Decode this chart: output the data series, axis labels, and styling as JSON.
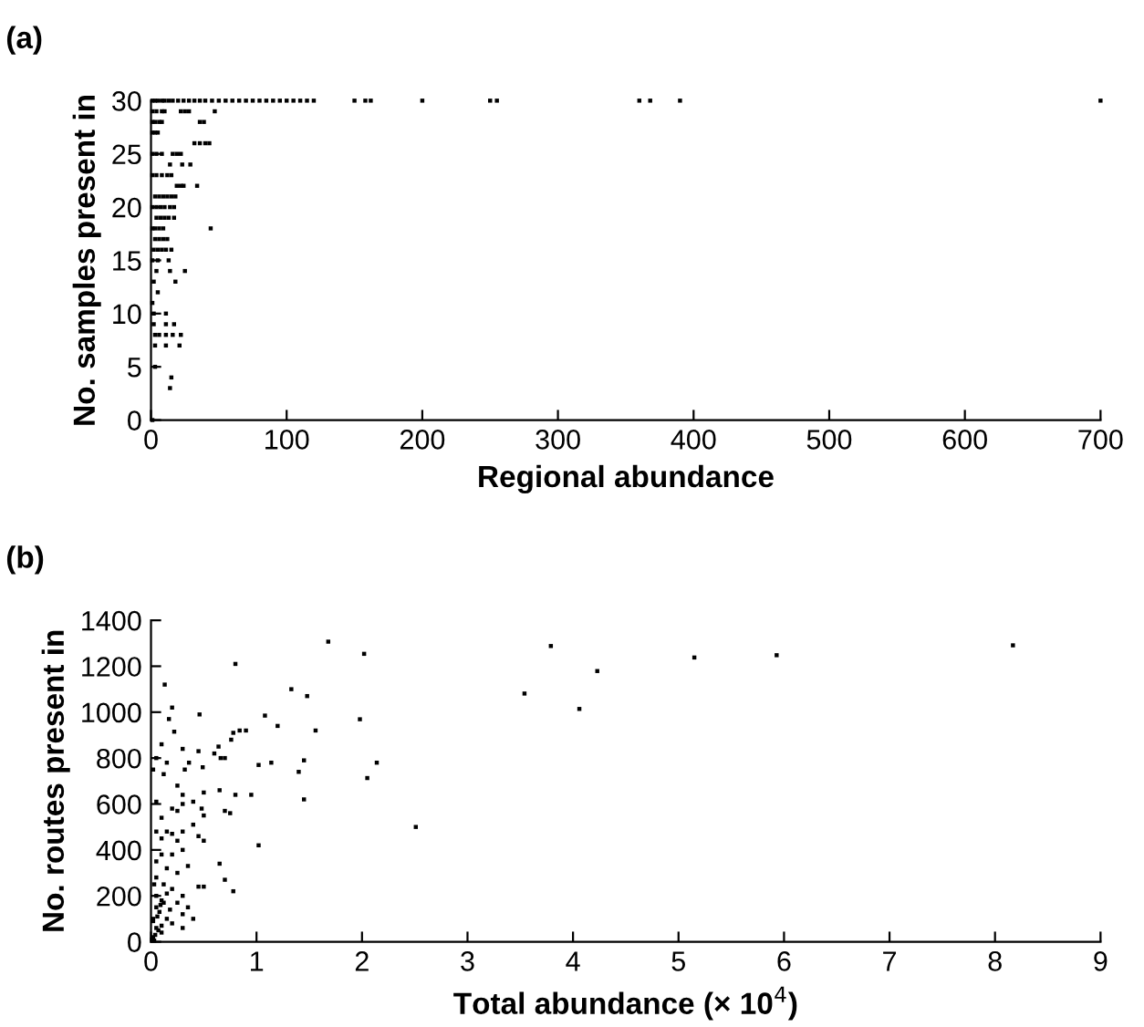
{
  "chart_data": [
    {
      "type": "scatter",
      "title": "(a)",
      "xlabel": "Regional abundance",
      "ylabel": "No. samples present in",
      "xlim": [
        0,
        700
      ],
      "ylim": [
        0,
        30
      ],
      "xticks": [
        0,
        100,
        200,
        300,
        400,
        500,
        600,
        700
      ],
      "yticks": [
        0,
        5,
        10,
        15,
        20,
        25,
        30
      ],
      "marker": "square",
      "grid": false,
      "series": [
        {
          "color": "#000000",
          "x": [
            1,
            3,
            5,
            8,
            10,
            13,
            16,
            20,
            24,
            28,
            32,
            36,
            40,
            45,
            50,
            55,
            60,
            65,
            70,
            75,
            80,
            85,
            90,
            95,
            100,
            105,
            110,
            115,
            120,
            150,
            158,
            162,
            200,
            250,
            255,
            360,
            368,
            390,
            700,
            1,
            4,
            8,
            10,
            22,
            25,
            28,
            47,
            1,
            3,
            6,
            8,
            36,
            39,
            1,
            3,
            5,
            32,
            36,
            40,
            43,
            1,
            4,
            8,
            16,
            19,
            22,
            14,
            23,
            29,
            1,
            4,
            8,
            12,
            15,
            19,
            22,
            24,
            34,
            3,
            6,
            9,
            12,
            15,
            18,
            1,
            4,
            7,
            10,
            14,
            17,
            4,
            7,
            10,
            13,
            17,
            1,
            3,
            6,
            9,
            44,
            3,
            6,
            9,
            12,
            2,
            5,
            8,
            11,
            15,
            1,
            5,
            13,
            4,
            14,
            25,
            2,
            18,
            5,
            1,
            2,
            11,
            2,
            11,
            17,
            3,
            6,
            11,
            16,
            22,
            3,
            11,
            21,
            3,
            15,
            14,
            1
          ],
          "values": [
            30,
            30,
            30,
            30,
            30,
            30,
            30,
            30,
            30,
            30,
            30,
            30,
            30,
            30,
            30,
            30,
            30,
            30,
            30,
            30,
            30,
            30,
            30,
            30,
            30,
            30,
            30,
            30,
            30,
            30,
            30,
            30,
            30,
            30,
            30,
            30,
            30,
            30,
            30,
            29,
            29,
            29,
            29,
            29,
            29,
            29,
            29,
            28,
            28,
            28,
            28,
            28,
            28,
            27,
            27,
            27,
            26,
            26,
            26,
            26,
            25,
            25,
            25,
            25,
            25,
            25,
            24,
            24,
            24,
            23,
            23,
            23,
            23,
            23,
            22,
            22,
            22,
            22,
            21,
            21,
            21,
            21,
            21,
            21,
            20,
            20,
            20,
            20,
            20,
            20,
            19,
            19,
            19,
            19,
            19,
            18,
            18,
            18,
            18,
            18,
            17,
            17,
            17,
            17,
            16,
            16,
            16,
            16,
            16,
            15,
            15,
            15,
            14,
            14,
            14,
            13,
            13,
            12,
            11,
            10,
            10,
            9,
            9,
            9,
            8,
            8,
            8,
            8,
            8,
            7,
            7,
            7,
            5,
            4,
            3,
            0
          ]
        }
      ]
    },
    {
      "type": "scatter",
      "title": "(b)",
      "xlabel": "Total abundance (× 10$^{4}$)",
      "ylabel": "No. routes present in",
      "xlim": [
        0,
        9
      ],
      "ylim": [
        0,
        1400
      ],
      "xticks": [
        0,
        1,
        2,
        3,
        4,
        5,
        6,
        7,
        8,
        9
      ],
      "yticks": [
        0,
        200,
        400,
        600,
        800,
        1000,
        1200,
        1400
      ],
      "marker": "square",
      "grid": false,
      "series": [
        {
          "color": "#000000",
          "x": [
            1.68,
            2.02,
            0.8,
            0.13,
            1.33,
            1.48,
            0.2,
            0.46,
            0.17,
            1.08,
            1.98,
            1.2,
            0.84,
            0.9,
            0.78,
            0.76,
            1.56,
            0.22,
            0.1,
            0.45,
            0.3,
            0.64,
            0.05,
            0.6,
            0.15,
            0.36,
            0.7,
            0.66,
            1.02,
            1.14,
            2.14,
            1.45,
            0.02,
            0.12,
            0.32,
            0.49,
            1.4,
            2.05,
            0.25,
            0.3,
            0.4,
            0.5,
            0.65,
            0.8,
            0.95,
            1.45,
            0.05,
            0.2,
            0.1,
            0.25,
            0.3,
            0.7,
            0.75,
            0.48,
            0.5,
            0.4,
            0.15,
            0.05,
            0.2,
            0.3,
            0.1,
            0.25,
            0.45,
            0.5,
            1.02,
            2.51,
            0.2,
            0.3,
            0.1,
            0.05,
            0.35,
            0.15,
            0.25,
            0.65,
            0.7,
            0.45,
            0.5,
            0.78,
            0.05,
            0.12,
            0.2,
            0.3,
            0.1,
            0.05,
            0.25,
            0.35,
            0.3,
            0.15,
            0.2,
            0.05,
            0.4,
            0.3,
            0.1,
            0.02,
            0.05,
            0.02,
            0.08,
            0.12,
            0.03,
            0.15,
            0.18,
            0.01,
            0.04,
            0.07,
            0.1,
            0.02,
            0.06,
            0.09,
            0.03,
            3.54,
            3.79,
            4.06,
            4.23,
            5.15,
            5.93,
            8.17
          ],
          "values": [
            1307,
            1254,
            1210,
            1120,
            1100,
            1070,
            1020,
            990,
            970,
            985,
            969,
            940,
            920,
            920,
            910,
            880,
            920,
            915,
            860,
            830,
            840,
            850,
            800,
            820,
            780,
            780,
            800,
            800,
            770,
            780,
            780,
            790,
            750,
            730,
            750,
            760,
            740,
            713,
            680,
            640,
            610,
            650,
            660,
            640,
            640,
            620,
            610,
            580,
            540,
            570,
            600,
            570,
            560,
            580,
            550,
            510,
            480,
            480,
            470,
            480,
            450,
            440,
            460,
            440,
            420,
            500,
            380,
            400,
            380,
            350,
            330,
            320,
            300,
            340,
            270,
            240,
            240,
            220,
            280,
            250,
            230,
            200,
            180,
            150,
            170,
            150,
            120,
            100,
            80,
            60,
            100,
            60,
            40,
            20,
            200,
            100,
            130,
            170,
            250,
            210,
            140,
            10,
            30,
            50,
            70,
            90,
            110,
            160,
            5,
            1081,
            1288,
            1014,
            1179,
            1238,
            1248,
            1291
          ]
        }
      ]
    }
  ]
}
